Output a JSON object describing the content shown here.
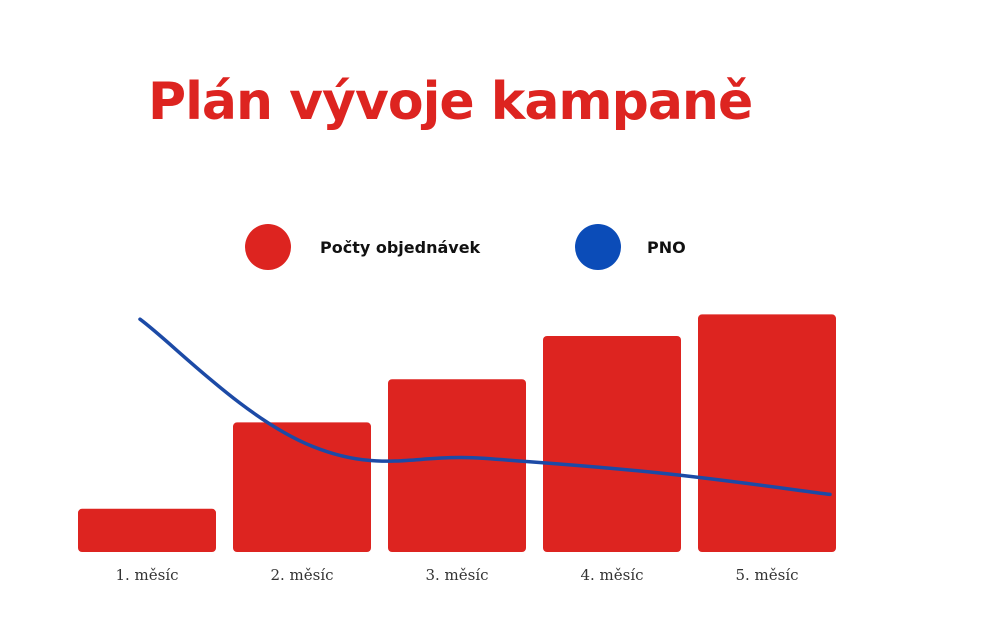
{
  "colors": {
    "bar": "#dd2420",
    "line": "#1c4aa6",
    "legend_line_dot": "#0b4cb8",
    "title": "#dd2420"
  },
  "chart_data": {
    "type": "bar",
    "title": "Plán vývoje kampaně",
    "categories": [
      "1. měsíc",
      "2. měsíc",
      "3. měsíc",
      "4. měsíc",
      "5. měsíc"
    ],
    "ylim": [
      0,
      100
    ],
    "series": [
      {
        "name": "Počty objednávek",
        "type": "bar",
        "values": [
          18,
          54,
          72,
          90,
          99
        ]
      },
      {
        "name": "PNO",
        "type": "line",
        "values": [
          97,
          44,
          39,
          33,
          24
        ]
      }
    ],
    "legend_position": "top",
    "grid": false
  }
}
